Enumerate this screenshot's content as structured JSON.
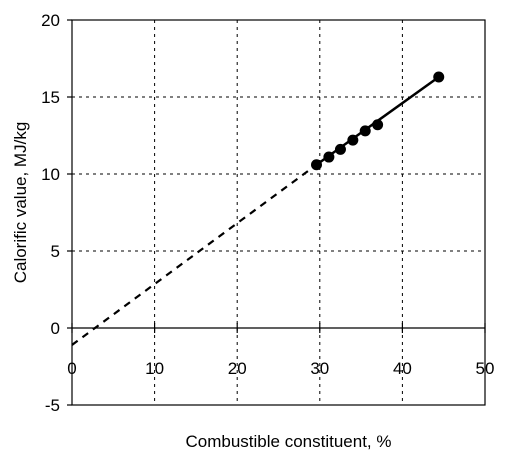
{
  "chart_data": {
    "type": "scatter",
    "title": "",
    "xlabel": "Combustible constituent, %",
    "ylabel": "Calorific value, MJ/kg",
    "xlim": [
      0,
      50
    ],
    "ylim": [
      -5,
      20
    ],
    "x_ticks": [
      0,
      10,
      20,
      30,
      40,
      50
    ],
    "y_ticks": [
      -5,
      0,
      5,
      10,
      15,
      20
    ],
    "x_tick_labels": [
      "0",
      "10",
      "20",
      "30",
      "40",
      "50"
    ],
    "y_tick_labels": [
      "-5",
      "0",
      "5",
      "10",
      "15",
      "20"
    ],
    "grid": true,
    "legend": "none",
    "points": {
      "x": [
        29.6,
        31.1,
        32.5,
        34.0,
        35.5,
        37.0,
        44.4
      ],
      "y": [
        10.6,
        11.1,
        11.6,
        12.2,
        12.8,
        13.2,
        16.3
      ]
    },
    "fit_solid": {
      "x": [
        29.6,
        44.4
      ],
      "y": [
        10.6,
        16.3
      ]
    },
    "fit_dashed": {
      "x": [
        0,
        29.6
      ],
      "y": [
        -1.1,
        10.6
      ]
    }
  }
}
